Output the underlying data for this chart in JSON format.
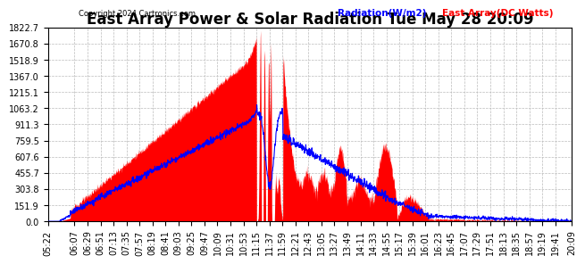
{
  "title": "East Array Power & Solar Radiation Tue May 28 20:09",
  "copyright": "Copyright 2024 Cartronics.com",
  "legend_radiation": "Radiation(W/m2)",
  "legend_east_array": "East Array(DC Watts)",
  "radiation_color": "blue",
  "east_array_color": "red",
  "ymin": 0.0,
  "ymax": 1822.7,
  "yticks": [
    0.0,
    151.9,
    303.8,
    455.7,
    607.6,
    759.5,
    911.3,
    1063.2,
    1215.1,
    1367.0,
    1518.9,
    1670.8,
    1822.7
  ],
  "background_color": "#ffffff",
  "grid_color": "#bbbbbb",
  "title_fontsize": 12,
  "axis_fontsize": 7,
  "x_times": [
    "05:22",
    "06:07",
    "06:29",
    "06:51",
    "07:13",
    "07:35",
    "07:57",
    "08:19",
    "08:41",
    "09:03",
    "09:25",
    "09:47",
    "10:09",
    "10:31",
    "10:53",
    "11:15",
    "11:37",
    "11:59",
    "12:21",
    "12:43",
    "13:05",
    "13:27",
    "13:49",
    "14:11",
    "14:33",
    "14:55",
    "15:17",
    "15:39",
    "16:01",
    "16:23",
    "16:45",
    "17:07",
    "17:29",
    "17:51",
    "18:13",
    "18:35",
    "18:57",
    "19:19",
    "19:41",
    "20:09"
  ]
}
